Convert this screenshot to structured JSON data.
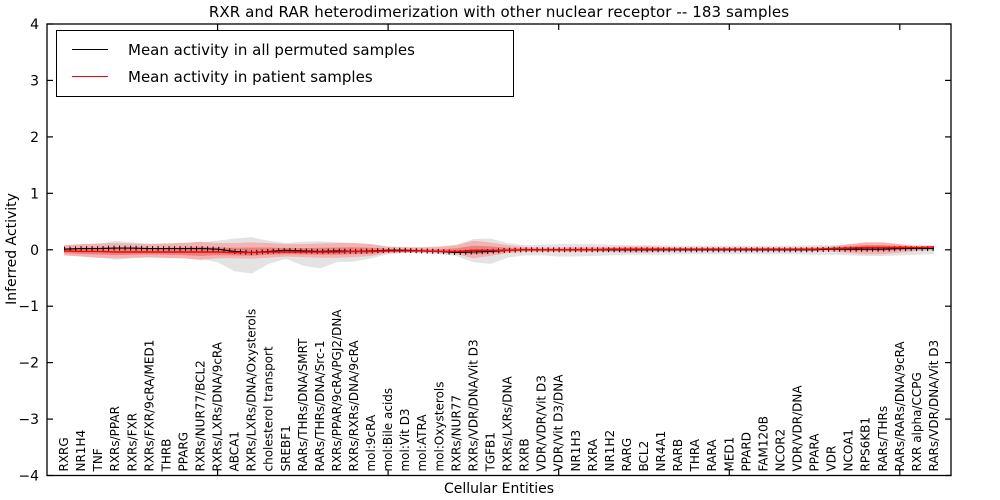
{
  "figure": {
    "title": "RXR and RAR heterodimerization with other nuclear receptor -- 183 samples",
    "xlabel": "Cellular Entities",
    "ylabel": "Inferred Activity"
  },
  "legend": {
    "items": [
      {
        "label": "Mean activity in all permuted samples",
        "color": "#000000"
      },
      {
        "label": "Mean activity in patient samples",
        "color": "#ff0000"
      }
    ]
  },
  "colors": {
    "permuted_band": "#e3e3e3",
    "patient_band_outer": "#f3b3b3",
    "patient_band_core": "#ec8181",
    "permuted_line": "#000000",
    "patient_line": "#ff0000",
    "axis": "#000000"
  },
  "chart_data": {
    "type": "line",
    "title": "RXR and RAR heterodimerization with other nuclear receptor -- 183 samples",
    "xlabel": "Cellular Entities",
    "ylabel": "Inferred Activity",
    "ylim": [
      -4,
      4
    ],
    "xlim": [
      0,
      53
    ],
    "yticks": [
      -4,
      -3,
      -2,
      -1,
      0,
      1,
      2,
      3,
      4
    ],
    "ytick_labels": [
      "−4",
      "−3",
      "−2",
      "−1",
      "0",
      "1",
      "2",
      "3",
      "4"
    ],
    "xticks": [
      10,
      20,
      30,
      40,
      50
    ],
    "grid": false,
    "legend_position": "upper left",
    "categories": [
      "RXRG",
      "NR1H4",
      "TNF",
      "RXRs/PPAR",
      "RXRs/FXR",
      "RXRs/FXR/9cRA/MED1",
      "THRB",
      "PPARG",
      "RXRs/NUR77/BCL2",
      "RXRs/LXRs/DNA/9cRA",
      "ABCA1",
      "RXRs/LXRs/DNA/Oxysterols",
      "cholesterol transport",
      "SREBF1",
      "RARs/THRs/DNA/SMRT",
      "RARs/THRs/DNA/Src-1",
      "RXRs/PPAR/9cRA/PGJ2/DNA",
      "RXRs/RXRs/DNA/9cRA",
      "mol:9cRA",
      "mol:Bile acids",
      "mol:Vit D3",
      "mol:ATRA",
      "mol:Oxysterols",
      "RXRs/NUR77",
      "RXRs/VDR/DNA/Vit D3",
      "TGFB1",
      "RXRs/LXRs/DNA",
      "RXRB",
      "VDR/VDR/Vit D3",
      "VDR/Vit D3/DNA",
      "NR1H3",
      "RXRA",
      "NR1H2",
      "RARG",
      "BCL2",
      "NR4A1",
      "RARB",
      "THRA",
      "RARA",
      "MED1",
      "PPARD",
      "FAM120B",
      "NCOR2",
      "VDR/VDR/DNA",
      "PPARA",
      "VDR",
      "NCOA1",
      "RPS6KB1",
      "RARs/THRs",
      "RARs/RARs/DNA/9cRA",
      "RXR alpha/CCPG",
      "RARs/VDR/DNA/Vit D3"
    ],
    "series": [
      {
        "name": "Mean activity in all permuted samples",
        "color": "#000000",
        "marker": "+",
        "values": [
          0.01,
          0.02,
          0.02,
          0.03,
          0.03,
          0.02,
          0.02,
          0.02,
          0.02,
          0.01,
          -0.03,
          -0.05,
          -0.03,
          -0.01,
          -0.02,
          -0.03,
          -0.02,
          -0.03,
          -0.02,
          -0.01,
          -0.01,
          -0.02,
          -0.03,
          -0.05,
          -0.04,
          -0.03,
          -0.01,
          0,
          0,
          0,
          0,
          0,
          0,
          0,
          0,
          0,
          0,
          0,
          0,
          0,
          0,
          0,
          0,
          0,
          0,
          0.01,
          0.01,
          0.01,
          0.01,
          0.02,
          0.02,
          0.02
        ]
      },
      {
        "name": "Mean activity in patient samples",
        "color": "#ff0000",
        "marker": "none",
        "values": [
          -0.02,
          -0.03,
          -0.03,
          -0.04,
          -0.04,
          -0.04,
          -0.04,
          -0.04,
          -0.04,
          -0.04,
          -0.05,
          -0.05,
          -0.04,
          -0.04,
          -0.04,
          -0.04,
          -0.04,
          -0.03,
          -0.03,
          -0.02,
          -0.02,
          -0.02,
          -0.03,
          -0.03,
          -0.01,
          -0.01,
          -0.01,
          0,
          0,
          0,
          0,
          0,
          0.01,
          0.01,
          0.01,
          0.01,
          0.01,
          0.01,
          0.01,
          0.01,
          0.01,
          0.01,
          0.01,
          0.01,
          0.01,
          0.02,
          0.03,
          0.04,
          0.04,
          0.04,
          0.04,
          0.05
        ]
      }
    ],
    "bands": [
      {
        "name": "permuted-samples-range",
        "color": "#e3e3e3",
        "upper": [
          0.06,
          0.08,
          0.1,
          0.16,
          0.13,
          0.11,
          0.11,
          0.12,
          0.13,
          0.16,
          0.2,
          0.22,
          0.16,
          0.12,
          0.14,
          0.15,
          0.13,
          0.12,
          0.1,
          0.06,
          0.05,
          0.05,
          0.06,
          0.09,
          0.19,
          0.2,
          0.12,
          0.08,
          0.09,
          0.1,
          0.1,
          0.1,
          0.09,
          0.08,
          0.08,
          0.08,
          0.07,
          0.07,
          0.07,
          0.07,
          0.07,
          0.07,
          0.07,
          0.07,
          0.08,
          0.08,
          0.09,
          0.1,
          0.1,
          0.09,
          0.09,
          0.08
        ],
        "lower": [
          -0.07,
          -0.1,
          -0.13,
          -0.18,
          -0.15,
          -0.14,
          -0.15,
          -0.15,
          -0.16,
          -0.22,
          -0.38,
          -0.42,
          -0.25,
          -0.16,
          -0.28,
          -0.33,
          -0.22,
          -0.21,
          -0.15,
          -0.08,
          -0.06,
          -0.06,
          -0.08,
          -0.11,
          -0.22,
          -0.25,
          -0.14,
          -0.1,
          -0.1,
          -0.12,
          -0.12,
          -0.11,
          -0.1,
          -0.09,
          -0.09,
          -0.09,
          -0.08,
          -0.08,
          -0.08,
          -0.08,
          -0.08,
          -0.08,
          -0.08,
          -0.08,
          -0.09,
          -0.09,
          -0.1,
          -0.11,
          -0.11,
          -0.1,
          -0.09,
          -0.08
        ]
      },
      {
        "name": "patient-samples-range-outer",
        "color": "#f3b3b3",
        "upper": [
          0.08,
          0.1,
          0.11,
          0.12,
          0.11,
          0.1,
          0.11,
          0.12,
          0.14,
          0.12,
          0.12,
          0.13,
          0.12,
          0.1,
          0.1,
          0.11,
          0.12,
          0.12,
          0.1,
          0.05,
          0.04,
          0.04,
          0.05,
          0.08,
          0.16,
          0.13,
          0.08,
          0.05,
          0.04,
          0.04,
          0.05,
          0.05,
          0.05,
          0.06,
          0.06,
          0.05,
          0.04,
          0.04,
          0.04,
          0.04,
          0.04,
          0.04,
          0.04,
          0.04,
          0.05,
          0.06,
          0.1,
          0.13,
          0.13,
          0.1,
          0.06,
          0.06
        ],
        "lower": [
          -0.1,
          -0.12,
          -0.14,
          -0.15,
          -0.14,
          -0.13,
          -0.14,
          -0.15,
          -0.18,
          -0.15,
          -0.15,
          -0.16,
          -0.14,
          -0.12,
          -0.13,
          -0.14,
          -0.14,
          -0.13,
          -0.11,
          -0.06,
          -0.05,
          -0.05,
          -0.06,
          -0.08,
          -0.15,
          -0.11,
          -0.06,
          -0.04,
          -0.04,
          -0.04,
          -0.04,
          -0.04,
          -0.04,
          -0.05,
          -0.05,
          -0.04,
          -0.03,
          -0.03,
          -0.03,
          -0.03,
          -0.03,
          -0.03,
          -0.03,
          -0.03,
          -0.03,
          -0.03,
          -0.06,
          -0.08,
          -0.08,
          -0.05,
          -0.02,
          -0.01
        ]
      },
      {
        "name": "patient-samples-range-core",
        "color": "#ec8181",
        "upper": [
          0.03,
          0.035,
          0.04,
          0.04,
          0.035,
          0.03,
          0.035,
          0.04,
          0.05,
          0.04,
          0.035,
          0.04,
          0.04,
          0.03,
          0.03,
          0.035,
          0.04,
          0.045,
          0.035,
          0.015,
          0.01,
          0.01,
          0.01,
          0.025,
          0.07,
          0.06,
          0.035,
          0.025,
          0.02,
          0.02,
          0.025,
          0.025,
          0.03,
          0.035,
          0.035,
          0.03,
          0.025,
          0.025,
          0.025,
          0.025,
          0.025,
          0.025,
          0.025,
          0.025,
          0.03,
          0.04,
          0.065,
          0.085,
          0.085,
          0.07,
          0.05,
          0.055
        ],
        "lower": [
          -0.06,
          -0.075,
          -0.085,
          -0.095,
          -0.09,
          -0.085,
          -0.09,
          -0.095,
          -0.11,
          -0.095,
          -0.1,
          -0.105,
          -0.09,
          -0.08,
          -0.085,
          -0.09,
          -0.09,
          -0.08,
          -0.07,
          -0.04,
          -0.035,
          -0.035,
          -0.045,
          -0.055,
          -0.08,
          -0.06,
          -0.035,
          -0.02,
          -0.02,
          -0.02,
          -0.02,
          -0.02,
          -0.015,
          -0.02,
          -0.02,
          -0.015,
          -0.01,
          -0.01,
          -0.01,
          -0.01,
          -0.01,
          -0.01,
          -0.01,
          -0.01,
          -0.005,
          -0.005,
          -0.02,
          -0.02,
          -0.02,
          -0.005,
          0.01,
          0.02
        ]
      }
    ]
  }
}
